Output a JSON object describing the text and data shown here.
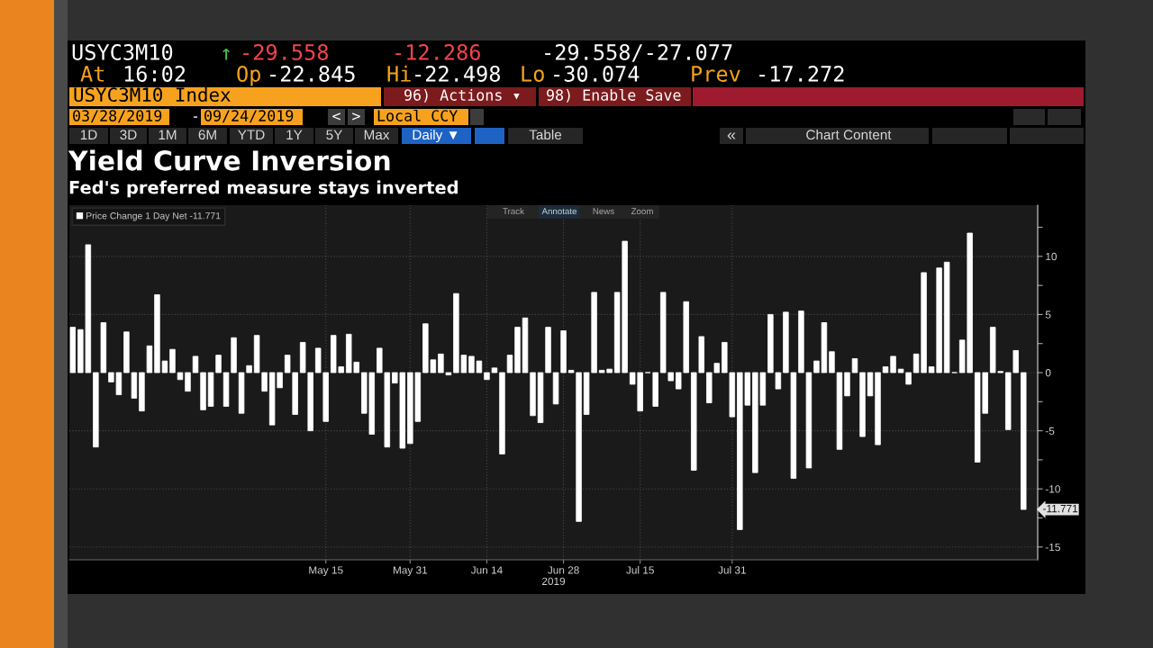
{
  "chart_data": {
    "type": "bar",
    "title": "Yield Curve Inversion",
    "subtitle": "Fed's preferred measure stays inverted",
    "xlabel": "2019",
    "categories": [
      null,
      null,
      null,
      null,
      null,
      null,
      null,
      null,
      null,
      null,
      null,
      null,
      null,
      null,
      null,
      null,
      null,
      null,
      null,
      null,
      null,
      null,
      null,
      null,
      null,
      null,
      null,
      null,
      null,
      null,
      null,
      null,
      null,
      "May 15",
      null,
      null,
      null,
      null,
      null,
      null,
      null,
      null,
      null,
      null,
      "May 31",
      null,
      null,
      null,
      null,
      null,
      null,
      null,
      null,
      null,
      "Jun 14",
      null,
      null,
      null,
      null,
      null,
      null,
      null,
      null,
      null,
      "Jun 28",
      null,
      null,
      null,
      null,
      null,
      null,
      null,
      null,
      null,
      "Jul 15",
      null,
      null,
      null,
      null,
      null,
      null,
      null,
      null,
      null,
      null,
      null,
      "Jul 31",
      null,
      null,
      null,
      null,
      null,
      null,
      null,
      null,
      null,
      null,
      null,
      null,
      null,
      null,
      null,
      null,
      null,
      null,
      null,
      null,
      null,
      null,
      null,
      null,
      null,
      null,
      null,
      null,
      null,
      null,
      null,
      null,
      null,
      null,
      null,
      null,
      null,
      null
    ],
    "series": [
      {
        "name": "Price Change 1 Day Net -11.771",
        "color": "#ffffff",
        "values": [
          3.9,
          3.7,
          11.0,
          -6.4,
          4.3,
          -0.8,
          -1.9,
          3.5,
          -2.2,
          -3.3,
          2.3,
          6.7,
          1.0,
          2.0,
          -0.6,
          -1.6,
          1.4,
          -3.2,
          -2.9,
          1.5,
          -2.9,
          3.0,
          -3.5,
          0.6,
          3.2,
          -1.6,
          -4.5,
          -1.3,
          1.5,
          -3.6,
          2.6,
          -5.0,
          2.1,
          -4.2,
          3.2,
          0.5,
          3.3,
          0.9,
          -3.5,
          -5.3,
          2.1,
          -6.4,
          -0.9,
          -6.5,
          -6.1,
          -4.2,
          4.2,
          1.1,
          1.6,
          -0.2,
          6.8,
          1.5,
          1.4,
          1.0,
          -0.6,
          0.4,
          -7.0,
          1.5,
          3.9,
          4.7,
          -3.7,
          -4.3,
          3.9,
          -2.7,
          3.6,
          0.2,
          -12.8,
          -3.6,
          6.9,
          0.2,
          0.3,
          6.9,
          11.3,
          -1.0,
          -3.3,
          0,
          -2.9,
          6.9,
          -0.7,
          -1.4,
          6.1,
          -8.4,
          3.1,
          -2.6,
          0.8,
          2.6,
          -3.8,
          -13.5,
          -2.8,
          -8.6,
          -2.8,
          5.0,
          -1.4,
          5.2,
          -9.1,
          5.3,
          -8.2,
          1.0,
          4.3,
          1.8,
          -6.6,
          -2.0,
          1.2,
          -5.5,
          -2.0,
          -6.2,
          0.5,
          1.4,
          0.3,
          -1.0,
          1.6,
          8.6,
          0.5,
          9.0,
          9.5,
          0,
          2.8,
          12.0,
          -7.7,
          -3.5,
          3.9,
          0.1,
          -4.9,
          1.9,
          -11.771
        ]
      }
    ],
    "ylim": [
      -16.1,
      14.4
    ],
    "yticks": [
      {
        "value": 12.5,
        "label": null
      },
      10,
      {
        "value": 7.5,
        "label": null
      },
      5,
      {
        "value": 2.5,
        "label": null
      },
      0,
      {
        "value": -2.5,
        "label": null
      },
      -5,
      {
        "value": -7.5,
        "label": null
      },
      -10,
      {
        "value": -12.5,
        "label": null
      },
      -15
    ],
    "grid": true,
    "legend": "top left",
    "annotations": [
      "USYC3M10",
      "↑",
      "-29.558",
      "-12.286",
      "-29.558/-27.077",
      "At",
      "16:02",
      "Op",
      "-22.845",
      "Hi",
      "-22.498",
      "Lo",
      "-30.074",
      "Prev",
      "-17.272",
      "USYC3M10 Index",
      "96) Actions ▾",
      "98) Enable Save",
      "03/28/2019",
      "-",
      "09/24/2019",
      "<",
      ">",
      "Local CCY",
      "1D",
      "3D",
      "1M",
      "6M",
      "YTD",
      "1Y",
      "5Y",
      "Max",
      "Daily ▼",
      "Table",
      "«",
      "Chart Content",
      "Track",
      "Annotate",
      "News",
      "Zoom",
      "-11.771"
    ]
  }
}
